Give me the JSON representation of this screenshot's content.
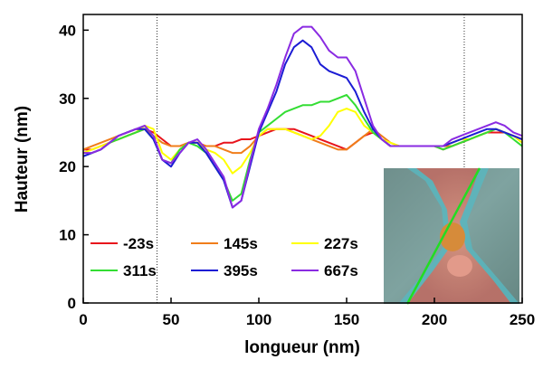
{
  "chart_data": {
    "type": "line",
    "x_label": "longueur (nm)",
    "y_label": "Hauteur (nm)",
    "x": [
      0,
      5,
      10,
      15,
      20,
      25,
      30,
      35,
      40,
      45,
      50,
      55,
      60,
      65,
      70,
      75,
      80,
      85,
      90,
      95,
      100,
      105,
      110,
      115,
      120,
      125,
      130,
      135,
      140,
      145,
      150,
      155,
      160,
      165,
      170,
      175,
      180,
      185,
      190,
      195,
      200,
      205,
      210,
      215,
      220,
      225,
      230,
      235,
      240,
      245,
      250
    ],
    "xlim": [
      0,
      250
    ],
    "xticks": [
      0,
      50,
      100,
      150,
      200,
      250
    ],
    "ylim": [
      0,
      42.3
    ],
    "yticks": [
      0,
      10,
      20,
      30,
      40
    ],
    "series": [
      {
        "name": "-23s",
        "color": "#e8141c",
        "values": [
          22.5,
          22.5,
          23,
          23.5,
          24,
          24.5,
          25,
          25.5,
          25,
          24,
          23,
          23,
          23.5,
          23.5,
          23,
          23,
          23.5,
          23.5,
          24,
          24,
          24.5,
          25,
          25.5,
          25.5,
          25.5,
          25,
          24.5,
          24,
          23.5,
          23,
          22.5,
          23.5,
          24.5,
          25,
          24,
          23,
          23,
          23,
          23,
          23,
          23,
          22.5,
          23,
          23.5,
          24,
          24.5,
          25,
          25,
          25,
          24.5,
          24
        ]
      },
      {
        "name": "145s",
        "color": "#f07d1a",
        "values": [
          22.5,
          23,
          23.5,
          24,
          24.5,
          25,
          25.5,
          25.5,
          24.5,
          23.5,
          23,
          23,
          23.5,
          23.5,
          23,
          23,
          22.5,
          22,
          22,
          23,
          24.5,
          25.5,
          25.5,
          25.5,
          25,
          24.5,
          24,
          23.5,
          23,
          22.5,
          22.5,
          23.5,
          24.5,
          25.5,
          24.5,
          23.5,
          23,
          23,
          23,
          23,
          23,
          23,
          23,
          23.5,
          24,
          24.5,
          25,
          25.5,
          25,
          24.5,
          24
        ]
      },
      {
        "name": "227s",
        "color": "#ffff00",
        "values": [
          22,
          22.5,
          23,
          23.5,
          24,
          24.5,
          25,
          26,
          25.5,
          22,
          21,
          22.5,
          23.5,
          23.5,
          22.5,
          22,
          21,
          19,
          20,
          22,
          24.5,
          25.5,
          25.5,
          25.5,
          25,
          24.5,
          24,
          24.5,
          26,
          28,
          28.5,
          28,
          26,
          25,
          24,
          23.5,
          23,
          23,
          23,
          23,
          23,
          23,
          23.5,
          24,
          24,
          24.5,
          25,
          25.5,
          25,
          24.5,
          23.5
        ]
      },
      {
        "name": "311s",
        "color": "#33dd33",
        "values": [
          21.5,
          22,
          22.5,
          23.5,
          24,
          24.5,
          25,
          25.5,
          24,
          21,
          20.5,
          22.5,
          23.5,
          23,
          22,
          20,
          18,
          15,
          16,
          21,
          25,
          26,
          27,
          28,
          28.5,
          29,
          29,
          29.5,
          29.5,
          30,
          30.5,
          29,
          27,
          25,
          24,
          23,
          23,
          23,
          23,
          23,
          23,
          22.5,
          23,
          23.5,
          24,
          24.5,
          25,
          25.5,
          25,
          24,
          23
        ]
      },
      {
        "name": "395s",
        "color": "#1c1cd4",
        "values": [
          21.5,
          22,
          22.5,
          23.5,
          24.5,
          25,
          25.5,
          25.5,
          24,
          21,
          20,
          22,
          23.5,
          23.5,
          22,
          20,
          18,
          14,
          15,
          20,
          25,
          28,
          31,
          35,
          37.5,
          38.5,
          37.5,
          35,
          34,
          33.5,
          33,
          31,
          28,
          25.5,
          24,
          23,
          23,
          23,
          23,
          23,
          23,
          23,
          23.5,
          24,
          24.5,
          25,
          25.5,
          25.5,
          25,
          24.5,
          24
        ]
      },
      {
        "name": "667s",
        "color": "#8a2be2",
        "values": [
          22,
          22,
          22.5,
          23.5,
          24.5,
          25,
          25.5,
          26,
          24.5,
          21,
          20.5,
          22,
          23.5,
          24,
          22.5,
          20.5,
          18.5,
          14,
          15,
          20.5,
          25.5,
          28.5,
          32,
          36,
          39.5,
          40.5,
          40.5,
          39,
          37,
          36,
          36,
          34,
          30,
          26,
          24,
          23,
          23,
          23,
          23,
          23,
          23,
          23,
          24,
          24.5,
          25,
          25.5,
          26,
          26.5,
          26,
          25,
          24.5
        ]
      }
    ]
  }
}
